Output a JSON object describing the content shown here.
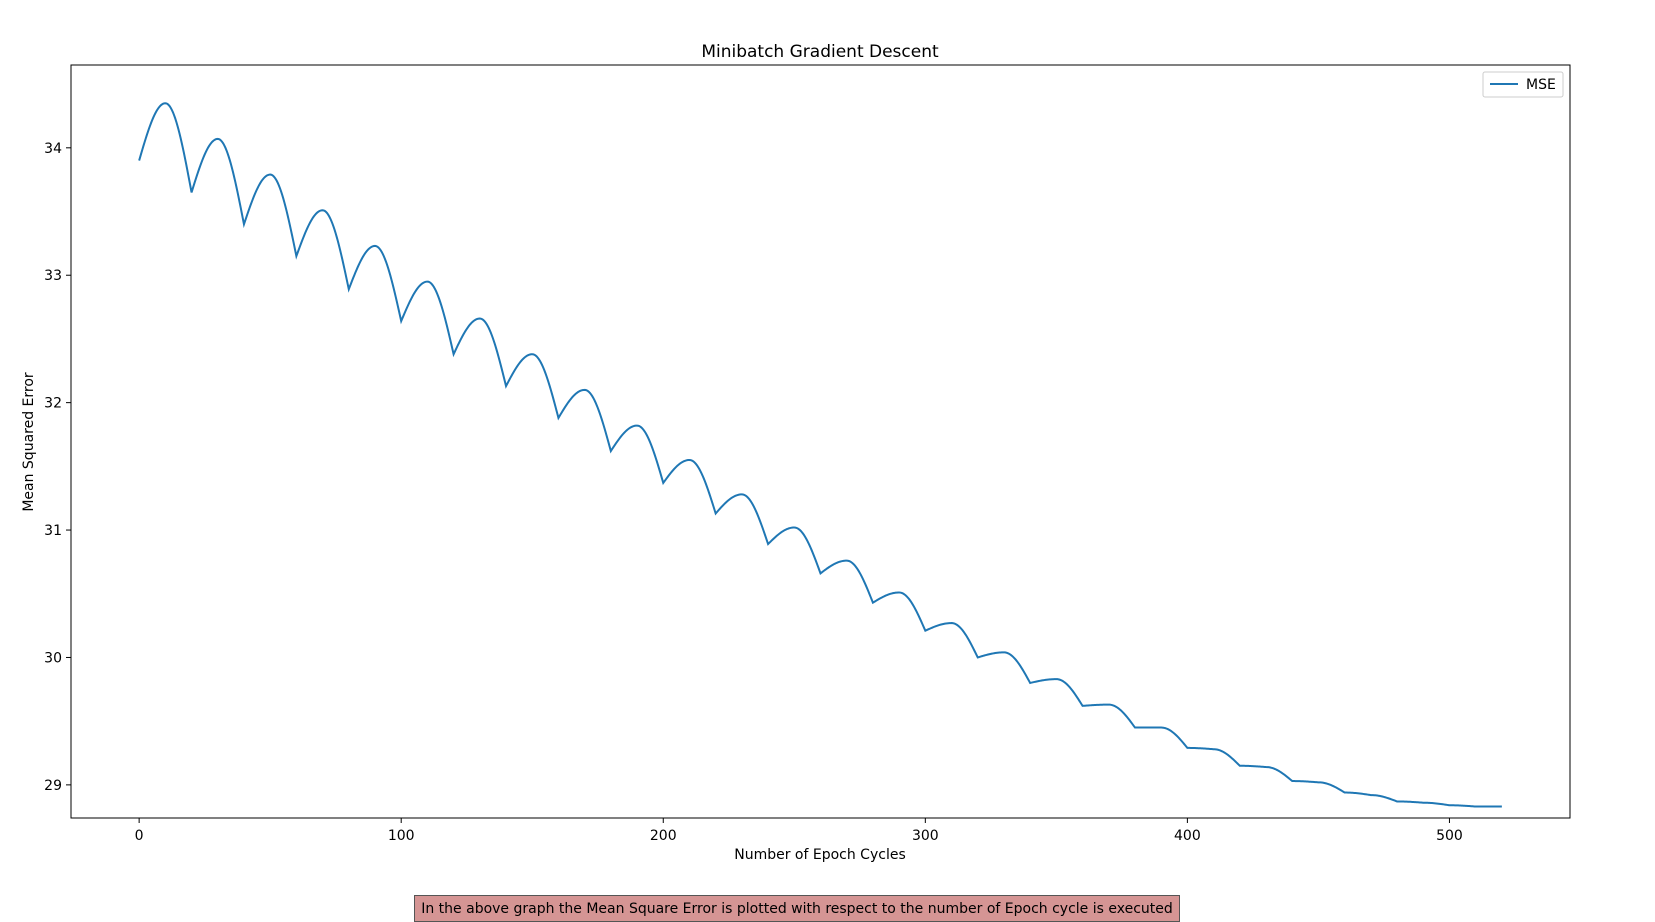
{
  "chart_data": {
    "type": "line",
    "title": "Minibatch Gradient Descent",
    "xlabel": "Number of Epoch Cycles",
    "ylabel": "Mean Squared Error",
    "xlim": [
      -26,
      546
    ],
    "ylim": [
      28.74,
      34.65
    ],
    "xticks": [
      0,
      100,
      200,
      300,
      400,
      500
    ],
    "yticks": [
      29,
      30,
      31,
      32,
      33,
      34
    ],
    "legend": {
      "position": "top-right",
      "entries": [
        "MSE"
      ]
    },
    "grid": false,
    "series": [
      {
        "name": "MSE",
        "color": "#1f77b4",
        "x": [
          0,
          10,
          20,
          30,
          40,
          50,
          60,
          70,
          80,
          90,
          100,
          110,
          120,
          130,
          140,
          150,
          160,
          170,
          180,
          190,
          200,
          210,
          220,
          230,
          240,
          250,
          260,
          270,
          280,
          290,
          300,
          310,
          320,
          330,
          340,
          350,
          360,
          370,
          380,
          390,
          400,
          410,
          420,
          430,
          440,
          450,
          460,
          470,
          480,
          490,
          500,
          510,
          520
        ],
        "y": [
          33.9,
          34.35,
          33.65,
          34.07,
          33.4,
          33.79,
          33.15,
          33.51,
          32.89,
          33.23,
          32.64,
          32.95,
          32.38,
          32.66,
          32.13,
          32.38,
          31.88,
          32.1,
          31.62,
          31.82,
          31.37,
          31.55,
          31.13,
          31.28,
          30.89,
          31.02,
          30.66,
          30.76,
          30.43,
          30.51,
          30.21,
          30.27,
          30.0,
          30.04,
          29.8,
          29.83,
          29.62,
          29.63,
          29.45,
          29.45,
          29.29,
          29.28,
          29.15,
          29.14,
          29.03,
          29.02,
          28.94,
          28.92,
          28.87,
          28.86,
          28.84,
          28.83,
          28.83
        ]
      }
    ]
  },
  "caption": "In the above graph the Mean Square Error is plotted with respect to the number of Epoch cycle is executed"
}
